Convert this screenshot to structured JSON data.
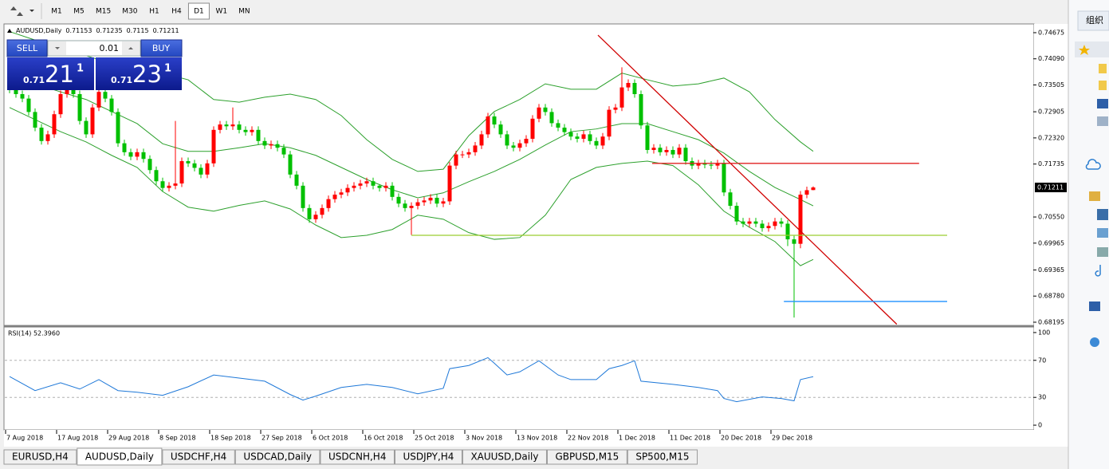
{
  "toolbar": {
    "timeframes": [
      "M1",
      "M5",
      "M15",
      "M30",
      "H1",
      "H4",
      "D1",
      "W1",
      "MN"
    ],
    "active": "D1"
  },
  "trade_panel": {
    "sell": "SELL",
    "buy": "BUY",
    "lot": "0.01",
    "bid": {
      "prefix": "0.71",
      "big": "21",
      "sup": "1"
    },
    "ask": {
      "prefix": "0.71",
      "big": "23",
      "sup": "1"
    }
  },
  "tabs": [
    "EURUSD,H4",
    "AUDUSD,Daily",
    "USDCHF,H4",
    "USDCAD,Daily",
    "USDCNH,H4",
    "USDJPY,H4",
    "XAUUSD,Daily",
    "GBPUSD,M15",
    "SP500,M15"
  ],
  "active_tab": "AUDUSD,Daily",
  "side_panel": {
    "button": "组织"
  },
  "chart_data": [
    {
      "type": "candlestick",
      "title": "AUDUSD,Daily",
      "open": [
        0.7355,
        0.734,
        0.733,
        0.732,
        0.729,
        0.7255,
        0.7225,
        0.724,
        0.7285,
        0.733,
        0.735,
        0.733,
        0.727,
        0.724,
        0.73,
        0.7335,
        0.732,
        0.729,
        0.722,
        0.72,
        0.719,
        0.72,
        0.7185,
        0.716,
        0.7135,
        0.712,
        0.7125,
        0.713,
        0.718,
        0.7175,
        0.7165,
        0.715,
        0.7175,
        0.725,
        0.7262,
        0.7258,
        0.7262,
        0.725,
        0.7245,
        0.725,
        0.7225,
        0.7215,
        0.7218,
        0.721,
        0.7195,
        0.715,
        0.7125,
        0.7075,
        0.705,
        0.706,
        0.7075,
        0.7095,
        0.7105,
        0.711,
        0.712,
        0.7125,
        0.713,
        0.7135,
        0.7125,
        0.712,
        0.7125,
        0.71,
        0.7085,
        0.7075,
        0.708,
        0.7088,
        0.7092,
        0.7098,
        0.7085,
        0.709,
        0.717,
        0.7195,
        0.7195,
        0.72,
        0.7215,
        0.724,
        0.728,
        0.7262,
        0.724,
        0.7215,
        0.721,
        0.722,
        0.723,
        0.7275,
        0.73,
        0.729,
        0.7265,
        0.7255,
        0.7245,
        0.7235,
        0.723,
        0.724,
        0.7225,
        0.7215,
        0.7235,
        0.7295,
        0.73,
        0.7345,
        0.7355,
        0.733,
        0.726,
        0.7205,
        0.721,
        0.72,
        0.7205,
        0.7195,
        0.721,
        0.718,
        0.717,
        0.7175,
        0.7172,
        0.717,
        0.7175,
        0.711,
        0.708,
        0.7045,
        0.704,
        0.7045,
        0.704,
        0.703,
        0.7035,
        0.7045,
        0.704,
        0.7005,
        0.6995,
        0.7105,
        0.71153
      ],
      "high": [
        0.7363,
        0.7348,
        0.7338,
        0.7328,
        0.7298,
        0.7263,
        0.7248,
        0.7293,
        0.7338,
        0.7358,
        0.7358,
        0.7338,
        0.7278,
        0.7308,
        0.7343,
        0.7343,
        0.7328,
        0.7298,
        0.7228,
        0.7208,
        0.7208,
        0.7208,
        0.7193,
        0.7168,
        0.7143,
        0.7133,
        0.727,
        0.7188,
        0.7188,
        0.7183,
        0.7173,
        0.7183,
        0.7258,
        0.727,
        0.727,
        0.73,
        0.727,
        0.7258,
        0.7258,
        0.7258,
        0.7233,
        0.7226,
        0.7226,
        0.7218,
        0.7203,
        0.7158,
        0.7133,
        0.7083,
        0.7068,
        0.7083,
        0.7103,
        0.7113,
        0.7118,
        0.7128,
        0.7133,
        0.7138,
        0.7143,
        0.7143,
        0.7128,
        0.7133,
        0.7133,
        0.7108,
        0.7093,
        0.7088,
        0.7096,
        0.71,
        0.7106,
        0.7106,
        0.7098,
        0.7178,
        0.7203,
        0.7203,
        0.7208,
        0.7223,
        0.7248,
        0.7288,
        0.7288,
        0.727,
        0.7248,
        0.7223,
        0.7228,
        0.7238,
        0.7283,
        0.7308,
        0.7308,
        0.7298,
        0.7273,
        0.7263,
        0.7253,
        0.7243,
        0.7248,
        0.7248,
        0.7233,
        0.7243,
        0.7303,
        0.7308,
        0.739,
        0.7363,
        0.7363,
        0.7338,
        0.7268,
        0.7218,
        0.7218,
        0.7213,
        0.7213,
        0.7218,
        0.7218,
        0.7188,
        0.7183,
        0.7183,
        0.718,
        0.7183,
        0.7183,
        0.7118,
        0.7088,
        0.7053,
        0.7053,
        0.7053,
        0.7048,
        0.7043,
        0.7053,
        0.7053,
        0.7048,
        0.7013,
        0.7113,
        0.7123,
        0.71235
      ],
      "low": [
        0.7332,
        0.7322,
        0.7312,
        0.7282,
        0.7247,
        0.7217,
        0.7217,
        0.7232,
        0.7277,
        0.7322,
        0.7322,
        0.7262,
        0.7232,
        0.7232,
        0.7292,
        0.7312,
        0.7282,
        0.7212,
        0.7192,
        0.7182,
        0.7182,
        0.7177,
        0.7152,
        0.7127,
        0.7112,
        0.7112,
        0.7117,
        0.7122,
        0.7167,
        0.7157,
        0.7142,
        0.7142,
        0.7167,
        0.7242,
        0.725,
        0.725,
        0.7242,
        0.7237,
        0.7237,
        0.7217,
        0.7207,
        0.7207,
        0.7202,
        0.7187,
        0.7142,
        0.7117,
        0.7067,
        0.7042,
        0.7042,
        0.7052,
        0.7067,
        0.7087,
        0.7097,
        0.7102,
        0.7112,
        0.7117,
        0.7122,
        0.7117,
        0.7112,
        0.7112,
        0.7092,
        0.7077,
        0.7067,
        0.7015,
        0.7072,
        0.708,
        0.7084,
        0.7077,
        0.7077,
        0.7082,
        0.7162,
        0.7187,
        0.7187,
        0.7192,
        0.7207,
        0.7232,
        0.7254,
        0.7232,
        0.7207,
        0.7202,
        0.7202,
        0.7212,
        0.7222,
        0.7267,
        0.7282,
        0.7257,
        0.7247,
        0.7237,
        0.7227,
        0.7222,
        0.7222,
        0.7217,
        0.7207,
        0.7207,
        0.7227,
        0.7287,
        0.7292,
        0.7337,
        0.7322,
        0.7252,
        0.7197,
        0.7197,
        0.7192,
        0.7192,
        0.7187,
        0.7187,
        0.7172,
        0.7162,
        0.7162,
        0.7164,
        0.7162,
        0.7162,
        0.7102,
        0.7072,
        0.7037,
        0.7032,
        0.7032,
        0.7032,
        0.7022,
        0.7022,
        0.7027,
        0.7032,
        0.699,
        0.683,
        0.6985,
        0.7097,
        0.7115
      ],
      "close": [
        0.734,
        0.733,
        0.732,
        0.729,
        0.7255,
        0.7225,
        0.724,
        0.7285,
        0.733,
        0.735,
        0.733,
        0.727,
        0.724,
        0.73,
        0.7335,
        0.732,
        0.729,
        0.722,
        0.72,
        0.719,
        0.72,
        0.7185,
        0.716,
        0.7135,
        0.712,
        0.7125,
        0.713,
        0.718,
        0.7175,
        0.7165,
        0.715,
        0.7175,
        0.725,
        0.7262,
        0.7258,
        0.7262,
        0.725,
        0.7245,
        0.725,
        0.7225,
        0.7215,
        0.7218,
        0.721,
        0.7195,
        0.715,
        0.7125,
        0.7075,
        0.705,
        0.706,
        0.7075,
        0.7095,
        0.7105,
        0.711,
        0.712,
        0.7125,
        0.713,
        0.7135,
        0.7125,
        0.712,
        0.7125,
        0.71,
        0.7085,
        0.7075,
        0.708,
        0.7088,
        0.7092,
        0.7098,
        0.7085,
        0.709,
        0.717,
        0.7195,
        0.7195,
        0.72,
        0.7215,
        0.724,
        0.728,
        0.7262,
        0.724,
        0.7215,
        0.721,
        0.722,
        0.723,
        0.7275,
        0.73,
        0.729,
        0.7265,
        0.7255,
        0.7245,
        0.7235,
        0.723,
        0.724,
        0.7225,
        0.7215,
        0.7235,
        0.7295,
        0.73,
        0.7345,
        0.7355,
        0.733,
        0.726,
        0.7205,
        0.721,
        0.72,
        0.7205,
        0.7195,
        0.721,
        0.718,
        0.717,
        0.7175,
        0.7172,
        0.717,
        0.7175,
        0.711,
        0.708,
        0.7045,
        0.704,
        0.7045,
        0.704,
        0.703,
        0.7035,
        0.7045,
        0.704,
        0.7005,
        0.6995,
        0.7105,
        0.7115,
        0.71211
      ],
      "up_color": "#ff0000",
      "down_color": "#00c000",
      "xlim": [
        -0.75,
        160.5
      ],
      "xticks": [
        {
          "value": 0,
          "label": "7 Aug 2018"
        },
        {
          "value": 8,
          "label": "17 Aug 2018"
        },
        {
          "value": 16,
          "label": "29 Aug 2018"
        },
        {
          "value": 24,
          "label": "8 Sep 2018"
        },
        {
          "value": 32,
          "label": "18 Sep 2018"
        },
        {
          "value": 40,
          "label": "27 Sep 2018"
        },
        {
          "value": 48,
          "label": "6 Oct 2018"
        },
        {
          "value": 56,
          "label": "16 Oct 2018"
        },
        {
          "value": 64,
          "label": "25 Oct 2018"
        },
        {
          "value": 72,
          "label": "3 Nov 2018"
        },
        {
          "value": 80,
          "label": "13 Nov 2018"
        },
        {
          "value": 88,
          "label": "22 Nov 2018"
        },
        {
          "value": 96,
          "label": "1 Dec 2018"
        },
        {
          "value": 104,
          "label": "11 Dec 2018"
        },
        {
          "value": 112,
          "label": "20 Dec 2018"
        },
        {
          "value": 120,
          "label": "29 Dec 2018"
        }
      ],
      "ylim": [
        0.68141,
        0.74853
      ],
      "yticks": [
        0.74675,
        {
          "value": 0.7409,
          "label": "0.74090"
        },
        0.73505,
        0.72905,
        {
          "value": 0.7232,
          "label": "0.72320"
        },
        0.71735,
        {
          "value": 0.7055,
          "label": "0.70550"
        },
        0.69965,
        0.69365,
        {
          "value": 0.6878,
          "label": "0.68780"
        },
        0.68195
      ],
      "overlays": [
        {
          "color": "#2ca02c",
          "x": [
            0,
            4,
            8,
            12,
            16,
            20,
            24,
            28,
            32,
            36,
            40,
            44,
            48,
            52,
            56,
            60,
            64,
            68,
            72,
            76,
            80,
            84,
            88,
            92,
            96,
            100,
            104,
            108,
            112,
            116,
            120,
            124,
            126
          ],
          "values": [
            0.747,
            0.7451,
            0.7434,
            0.7416,
            0.7398,
            0.7389,
            0.7377,
            0.7362,
            0.7318,
            0.7312,
            0.7323,
            0.733,
            0.7318,
            0.7282,
            0.7228,
            0.7184,
            0.7157,
            0.7162,
            0.7237,
            0.7291,
            0.7318,
            0.7353,
            0.7341,
            0.7341,
            0.7377,
            0.7362,
            0.7348,
            0.7353,
            0.7366,
            0.7335,
            0.7273,
            0.7223,
            0.7202
          ]
        },
        {
          "color": "#2ca02c",
          "x": [
            0,
            4,
            8,
            12,
            16,
            20,
            24,
            28,
            32,
            36,
            40,
            44,
            48,
            52,
            56,
            60,
            64,
            68,
            72,
            76,
            80,
            84,
            88,
            92,
            96,
            100,
            104,
            108,
            112,
            116,
            120,
            124,
            126
          ],
          "values": [
            0.7371,
            0.7353,
            0.7335,
            0.7318,
            0.7291,
            0.7264,
            0.7219,
            0.7202,
            0.7202,
            0.721,
            0.7219,
            0.721,
            0.7193,
            0.7166,
            0.7139,
            0.7116,
            0.7098,
            0.7109,
            0.7134,
            0.7157,
            0.7184,
            0.7216,
            0.7246,
            0.7252,
            0.7264,
            0.7264,
            0.7246,
            0.7228,
            0.7198,
            0.7157,
            0.7121,
            0.7094,
            0.708
          ]
        },
        {
          "color": "#2ca02c",
          "x": [
            0,
            4,
            8,
            12,
            16,
            20,
            24,
            28,
            32,
            36,
            40,
            44,
            48,
            52,
            56,
            60,
            64,
            68,
            72,
            76,
            80,
            84,
            88,
            92,
            96,
            100,
            104,
            108,
            112,
            116,
            120,
            124,
            126
          ],
          "values": [
            0.73,
            0.7273,
            0.7246,
            0.7223,
            0.7193,
            0.7166,
            0.7112,
            0.7077,
            0.7068,
            0.7081,
            0.7091,
            0.7073,
            0.7037,
            0.7009,
            0.7014,
            0.7027,
            0.7059,
            0.705,
            0.702,
            0.7005,
            0.7009,
            0.7059,
            0.7139,
            0.7166,
            0.7175,
            0.718,
            0.717,
            0.7127,
            0.7068,
            0.7032,
            0.7,
            0.6946,
            0.696
          ]
        }
      ],
      "objects": [
        {
          "color": "#d00000",
          "x": [
            92.25,
            139.1
          ],
          "y": [
            0.7462,
            0.6815
          ]
        },
        {
          "color": "#e02020",
          "x": [
            100.75,
            142.6
          ],
          "y": [
            0.7175,
            0.7175
          ]
        },
        {
          "color": "#9acd32",
          "x": [
            63,
            147
          ],
          "y": [
            0.7014,
            0.7014
          ]
        },
        {
          "color": "#1e90ff",
          "x": [
            121.4,
            147
          ],
          "y": [
            0.6866,
            0.6866
          ]
        }
      ]
    },
    {
      "type": "line",
      "title": "RSI(14) 52.3960",
      "color": "#1e78d8",
      "x": [
        0,
        4,
        8,
        11,
        14,
        17,
        20,
        24,
        28,
        32,
        36,
        40,
        44,
        46,
        48,
        52,
        56,
        60,
        64,
        68,
        69,
        72,
        75,
        76,
        78,
        80,
        83,
        86,
        88,
        92,
        94,
        96,
        98,
        99,
        104,
        108,
        111,
        112,
        114,
        118,
        121,
        123,
        124,
        126
      ],
      "values": [
        52.5,
        37.3,
        45.8,
        39,
        49.2,
        37.3,
        35.6,
        32.2,
        41.5,
        54.2,
        50.8,
        47.5,
        33.1,
        27.1,
        31.4,
        40.7,
        44.1,
        40.7,
        33.9,
        39.8,
        61,
        64.4,
        72.9,
        66.9,
        54.2,
        57.6,
        69.5,
        54.2,
        49.2,
        49.2,
        61,
        64.4,
        69.5,
        47.5,
        44.1,
        40.7,
        37.3,
        28.8,
        25.4,
        30.5,
        28.8,
        26.3,
        49.2,
        52.396
      ],
      "xlim": [
        -0.75,
        160.5
      ],
      "ylim": [
        -3.4,
        105.1
      ],
      "yticks": [
        100,
        70,
        30,
        0
      ],
      "levels": [
        70,
        30
      ]
    }
  ]
}
